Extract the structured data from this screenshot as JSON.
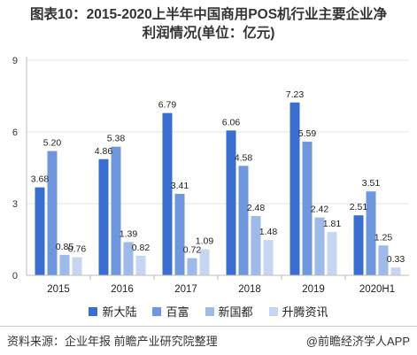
{
  "title_line1": "图表10：2015-2020上半年中国商用POS机行业主要企业净",
  "title_line2": "利润情况(单位：亿元)",
  "footer_source": "资料来源：企业年报  前瞻产业研究院整理",
  "footer_brand": "@前瞻经济学人APP",
  "colors": {
    "新大陆": "#3a6fd0",
    "百富": "#6f97dd",
    "新国都": "#9dbae8",
    "升腾资讯": "#c7d7f3"
  },
  "chart_data": {
    "type": "bar",
    "categories": [
      "2015",
      "2016",
      "2017",
      "2018",
      "2019",
      "2020H1"
    ],
    "series": [
      {
        "name": "新大陆",
        "values": [
          3.68,
          4.86,
          6.79,
          6.06,
          7.23,
          2.51
        ]
      },
      {
        "name": "百富",
        "values": [
          5.2,
          5.38,
          3.41,
          4.58,
          5.59,
          3.51
        ]
      },
      {
        "name": "新国都",
        "values": [
          0.85,
          1.39,
          0.72,
          2.48,
          2.42,
          1.25
        ]
      },
      {
        "name": "升腾资讯",
        "values": [
          0.76,
          0.82,
          1.09,
          1.48,
          1.81,
          0.33
        ]
      }
    ],
    "value_labels": [
      [
        "3.68",
        "4.86",
        "6.79",
        "6.06",
        "7.23",
        "2.51"
      ],
      [
        "5.20",
        "5.38",
        "3.41",
        "4.58",
        "5.59",
        "3.51"
      ],
      [
        "0.85",
        "1.39",
        "0.72",
        "2.48",
        "2.42",
        "1.25"
      ],
      [
        "0.76",
        "0.82",
        "1.09",
        "1.48",
        "1.81",
        "0.33"
      ]
    ],
    "yticks": [
      "0",
      "3",
      "6",
      "9"
    ],
    "ylim": [
      0,
      9
    ],
    "xlabel": "",
    "ylabel": "",
    "legend_position": "bottom"
  }
}
